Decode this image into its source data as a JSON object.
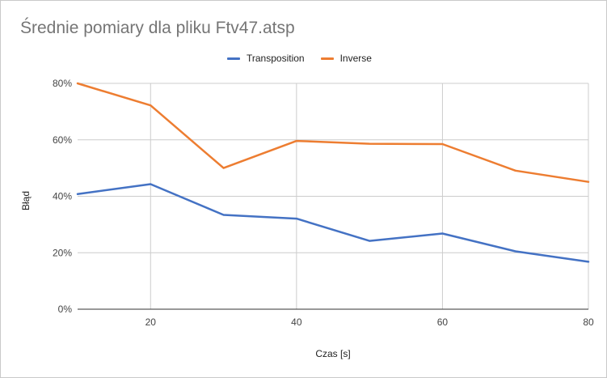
{
  "chart_data": {
    "type": "line",
    "title": "Średnie pomiary dla pliku Ftv47.atsp",
    "xlabel": "Czas [s]",
    "ylabel": "Błąd",
    "x": [
      10,
      20,
      30,
      40,
      50,
      60,
      70,
      80
    ],
    "xlim": [
      10,
      80
    ],
    "xticks": [
      "20",
      "40",
      "60",
      "80"
    ],
    "xtick_values": [
      20,
      40,
      60,
      80
    ],
    "ylim": [
      0,
      0.8
    ],
    "yticks": [
      "0%",
      "20%",
      "40%",
      "60%",
      "80%"
    ],
    "ytick_values": [
      0,
      0.2,
      0.4,
      0.6,
      0.8
    ],
    "grid": true,
    "legend_position": "top",
    "series": [
      {
        "name": "Transposition",
        "color": "#4472c4",
        "values": [
          0.408,
          0.443,
          0.334,
          0.321,
          0.242,
          0.268,
          0.205,
          0.168
        ]
      },
      {
        "name": "Inverse",
        "color": "#ed7d31",
        "values": [
          0.8,
          0.722,
          0.5,
          0.596,
          0.586,
          0.585,
          0.491,
          0.451
        ]
      }
    ]
  }
}
